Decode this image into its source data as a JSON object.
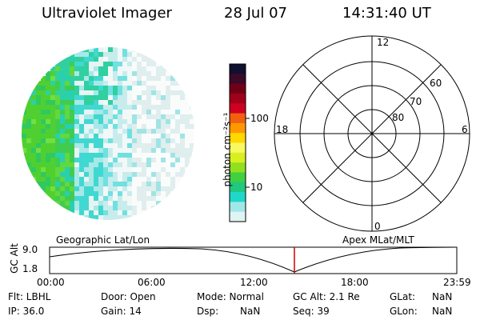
{
  "header": {
    "title": "Ultraviolet Imager",
    "date": "28 Jul 07",
    "time": "14:31:40 UT"
  },
  "colorbar": {
    "unit_label": "photon cm⁻²s⁻¹",
    "ticks": [
      "100",
      "10"
    ],
    "colors": [
      "#101030",
      "#3a0a28",
      "#700018",
      "#a0001a",
      "#d00020",
      "#f06010",
      "#ff9800",
      "#ffd800",
      "#f8f860",
      "#d8f020",
      "#90e020",
      "#40d040",
      "#20c880",
      "#20d8c8",
      "#a0e8e8",
      "#e0f4f4"
    ]
  },
  "polar": {
    "mlt_labels": {
      "top": "12",
      "left": "18",
      "right": "6",
      "bottom": "0"
    },
    "lat_labels": [
      "60",
      "70",
      "80"
    ]
  },
  "timeline": {
    "left_title": "Geographic Lat/Lon",
    "right_title": "Apex MLat/MLT",
    "ylabel": "GC Alt",
    "ytick_top": "9.0",
    "ytick_bottom": "1.8",
    "xticks": [
      "00:00",
      "06:00",
      "12:00",
      "18:00",
      "23:59"
    ],
    "current_marker_color": "#cc0000"
  },
  "info": {
    "row1": {
      "flt": "Flt: LBHL",
      "door": "Door: Open",
      "mode": "Mode: Normal",
      "gcalt": "GC Alt: 2.1 Re",
      "glat_label": "GLat:",
      "glat_value": "NaN"
    },
    "row2": {
      "ip": "IP: 36.0",
      "gain": "Gain: 14",
      "dsp_label": "Dsp:",
      "dsp_value": "NaN",
      "seq": "Seq: 39",
      "glon_label": "GLon:",
      "glon_value": "NaN"
    }
  }
}
